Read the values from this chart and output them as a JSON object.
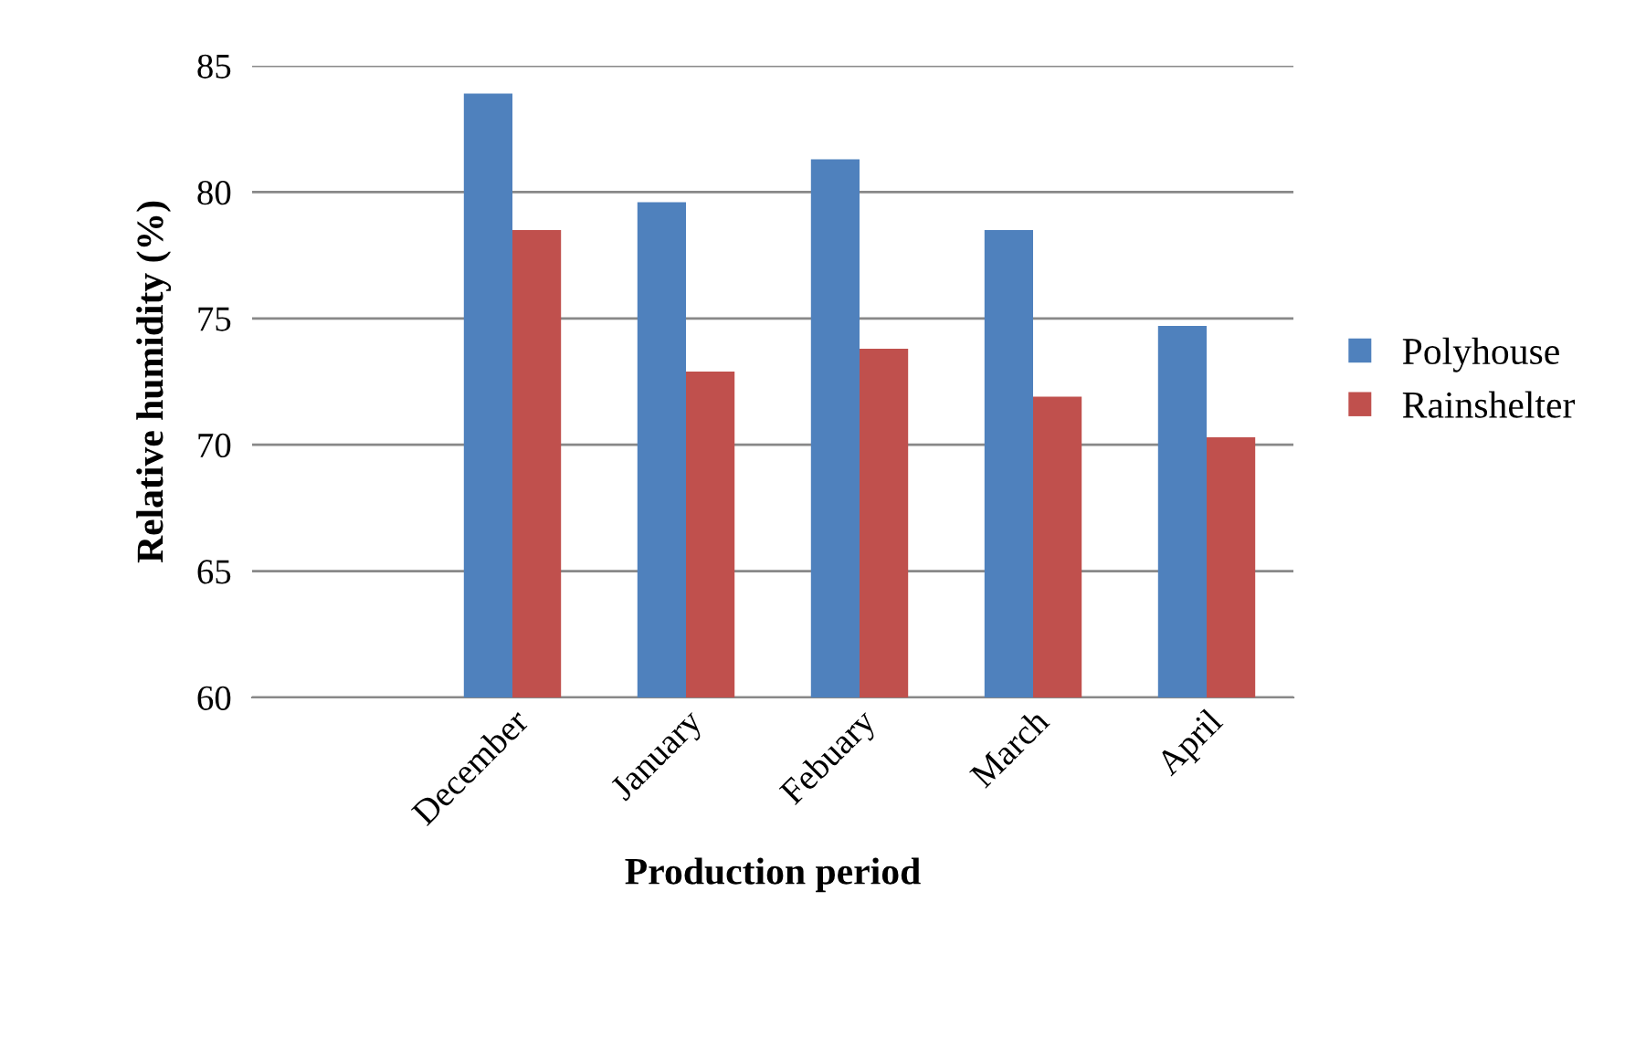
{
  "chart_data": {
    "type": "bar",
    "xlabel": "Production period",
    "ylabel": "Relative humidity (%)",
    "categories": [
      null,
      "December",
      "January",
      "Febuary",
      "March",
      "April"
    ],
    "series": [
      {
        "name": "Polyhouse",
        "color": "#4f81bd",
        "values": [
          null,
          83.9,
          79.6,
          81.3,
          78.5,
          74.7
        ]
      },
      {
        "name": "Rainshelter",
        "color": "#c0504d",
        "values": [
          null,
          78.5,
          72.9,
          73.8,
          71.9,
          70.3
        ]
      }
    ],
    "ylim": [
      60,
      85
    ],
    "yticks": [
      60,
      65,
      70,
      75,
      80,
      85
    ],
    "grid": "y",
    "legend": "right"
  }
}
